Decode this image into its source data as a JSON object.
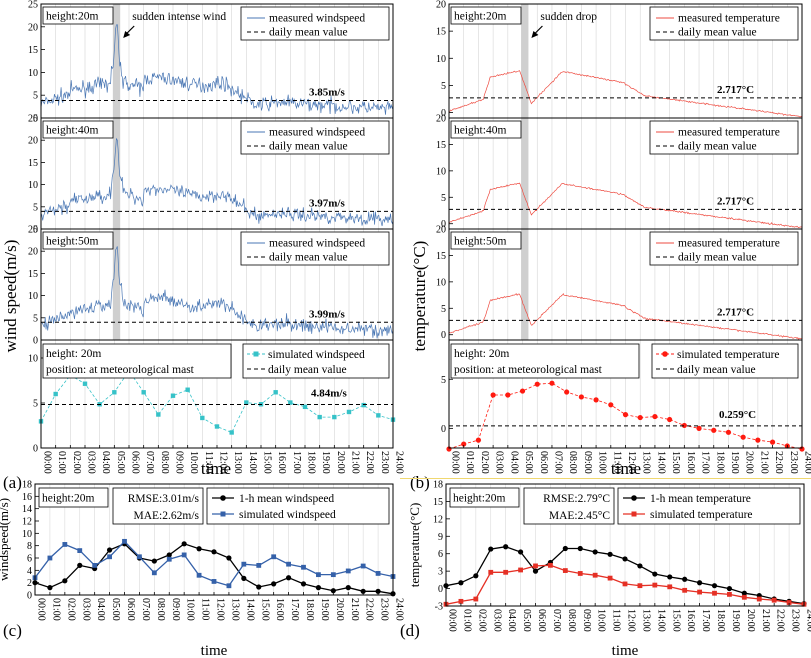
{
  "time_ticks": [
    "00:00",
    "01:00",
    "02:00",
    "03:00",
    "04:00",
    "05:00",
    "06:00",
    "07:00",
    "08:00",
    "09:00",
    "10:00",
    "11:00",
    "12:00",
    "13:00",
    "14:00",
    "15:00",
    "16:00",
    "17:00",
    "18:00",
    "19:00",
    "20:00",
    "21:00",
    "22:00",
    "23:00",
    "24:00"
  ],
  "panel_labels": {
    "a": "(a)",
    "b": "(b)",
    "c": "(c)",
    "d": "(d)"
  },
  "xlabel": "time",
  "wind": {
    "ylabel": "wind speed(m/s)",
    "annotation": "sudden intense wind",
    "legend_measured": "measured windspeed",
    "legend_mean": "daily  mean value",
    "legend_sim": "simulated windspeed",
    "series_color": "#4a77b4",
    "sim_color": "#36c2c8",
    "heights": [
      {
        "label": "height:20m",
        "mean": 3.85,
        "mean_label": "3.85m/s"
      },
      {
        "label": "height:40m",
        "mean": 3.97,
        "mean_label": "3.97m/s"
      },
      {
        "label": "height:50m",
        "mean": 3.99,
        "mean_label": "3.99m/s"
      }
    ],
    "sim_panel": {
      "label1": "height: 20m",
      "label2": "position: at meteorological mast",
      "mean": 4.84,
      "mean_label": "4.84m/s",
      "yticks": [
        0,
        5,
        10
      ],
      "ylim": [
        0,
        12
      ]
    },
    "yticks": [
      0,
      5,
      10,
      15,
      20,
      25
    ],
    "ylim": [
      0,
      25
    ]
  },
  "temp": {
    "ylabel": "temperature(°C)",
    "annotation": "sudden drop",
    "legend_measured": "measured temperature",
    "legend_mean": "daily  mean value",
    "legend_sim": "simulated temperature",
    "series_color": "#ee4b40",
    "sim_color": "#ff1a10",
    "heights": [
      {
        "label": "height:20m",
        "mean": 2.717,
        "mean_label": "2.717°C"
      },
      {
        "label": "height:40m",
        "mean": 2.717,
        "mean_label": "2.717°C"
      },
      {
        "label": "height:50m",
        "mean": 2.717,
        "mean_label": "2.717°C"
      }
    ],
    "sim_panel": {
      "label1": "height: 20m",
      "label2": "position: at meteorological mast",
      "mean": 0.259,
      "mean_label": "0.259°C",
      "yticks": [
        0,
        5
      ],
      "ylim": [
        -2,
        9
      ]
    },
    "yticks": [
      0,
      5,
      10,
      15,
      20
    ],
    "ylim": [
      -1,
      20
    ]
  },
  "chart_data": [
    {
      "type": "line",
      "panel": "c",
      "ylabel": "windspeed(m/s)",
      "xlabel": "time",
      "ylim": [
        0,
        18
      ],
      "yticks": [
        0,
        2,
        4,
        6,
        8,
        10,
        12,
        14,
        16,
        18
      ],
      "height_label": "height:20m",
      "metrics": [
        "RMSE:3.01m/s",
        "MAE:2.62m/s"
      ],
      "x": [
        "00:00",
        "01:00",
        "02:00",
        "03:00",
        "04:00",
        "05:00",
        "06:00",
        "07:00",
        "08:00",
        "09:00",
        "10:00",
        "11:00",
        "12:00",
        "13:00",
        "14:00",
        "15:00",
        "16:00",
        "17:00",
        "18:00",
        "19:00",
        "20:00",
        "21:00",
        "22:00",
        "23:00",
        "24:00"
      ],
      "series": [
        {
          "name": "1-h mean windspeed",
          "color": "#000000",
          "marker": "circle",
          "values": [
            2.0,
            1.2,
            2.3,
            4.8,
            4.3,
            7.3,
            8.3,
            6.0,
            5.5,
            6.5,
            8.3,
            7.5,
            7.0,
            6.0,
            2.7,
            1.3,
            1.8,
            2.8,
            1.8,
            1.2,
            0.7,
            1.2,
            0.6,
            0.6,
            0.2
          ]
        },
        {
          "name": "simulated windspeed",
          "color": "#3561a9",
          "marker": "square",
          "values": [
            2.8,
            6.0,
            8.2,
            7.2,
            4.8,
            6.2,
            8.7,
            6.2,
            3.6,
            5.8,
            6.5,
            3.2,
            2.2,
            1.5,
            5.0,
            4.8,
            6.2,
            5.0,
            4.5,
            3.3,
            3.3,
            3.9,
            4.7,
            3.5,
            3.0
          ]
        }
      ]
    },
    {
      "type": "line",
      "panel": "d",
      "ylabel": "temperature(°C)",
      "xlabel": "time",
      "ylim": [
        -3,
        18
      ],
      "yticks": [
        -3,
        0,
        3,
        6,
        9,
        12,
        15,
        18
      ],
      "height_label": "height:20m",
      "metrics": [
        "RMSE:2.79°C",
        "MAE:2.45°C"
      ],
      "x": [
        "00:00",
        "01:00",
        "02:00",
        "03:00",
        "04:00",
        "05:00",
        "06:00",
        "07:00",
        "08:00",
        "09:00",
        "10:00",
        "11:00",
        "12:00",
        "13:00",
        "14:00",
        "15:00",
        "16:00",
        "17:00",
        "18:00",
        "19:00",
        "20:00",
        "21:00",
        "22:00",
        "23:00",
        "24:00"
      ],
      "series": [
        {
          "name": "1-h mean temperature",
          "color": "#000000",
          "marker": "circle",
          "values": [
            0.5,
            1.0,
            2.2,
            6.8,
            7.2,
            6.3,
            3.0,
            4.5,
            6.9,
            6.9,
            6.3,
            5.9,
            5.1,
            3.9,
            2.5,
            2.0,
            1.6,
            1.0,
            0.5,
            0.0,
            -0.8,
            -1.2,
            -1.8,
            -2.2,
            -2.6
          ]
        },
        {
          "name": "simulated temperature",
          "color": "#e53025",
          "marker": "square",
          "values": [
            -2.7,
            -2.2,
            -1.8,
            2.8,
            2.8,
            3.2,
            3.9,
            4.0,
            3.1,
            2.6,
            2.3,
            1.8,
            0.8,
            0.5,
            0.6,
            0.3,
            -0.3,
            -0.6,
            -0.8,
            -1.0,
            -1.5,
            -1.8,
            -2.0,
            -2.4,
            -2.7
          ]
        }
      ]
    }
  ]
}
